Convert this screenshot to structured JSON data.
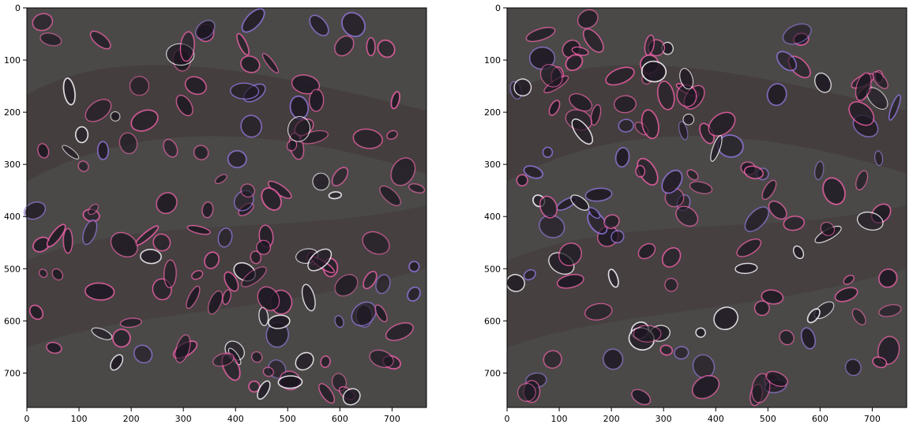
{
  "figure": {
    "panels": [
      {
        "id": "left",
        "description_id": "Segmentation prediction overlay on histology tile",
        "x_ticks": [
          "0",
          "100",
          "200",
          "300",
          "400",
          "500",
          "600",
          "700"
        ],
        "y_ticks": [
          "0",
          "100",
          "200",
          "300",
          "400",
          "500",
          "600",
          "700"
        ]
      },
      {
        "id": "right",
        "description_id": "Ground truth overlay on histology tile",
        "x_ticks": [
          "0",
          "100",
          "200",
          "300",
          "400",
          "500",
          "600",
          "700"
        ],
        "y_ticks": [
          "0",
          "100",
          "200",
          "300",
          "400",
          "500",
          "600",
          "700"
        ]
      }
    ]
  },
  "colors": {
    "background": "#4b4948",
    "tissue_dark": "#3b2a2d",
    "nucleus": "#1d1722",
    "contour_pink": "#e35aa0",
    "contour_white": "#f1eef4",
    "contour_purple": "#8b6fd6"
  }
}
